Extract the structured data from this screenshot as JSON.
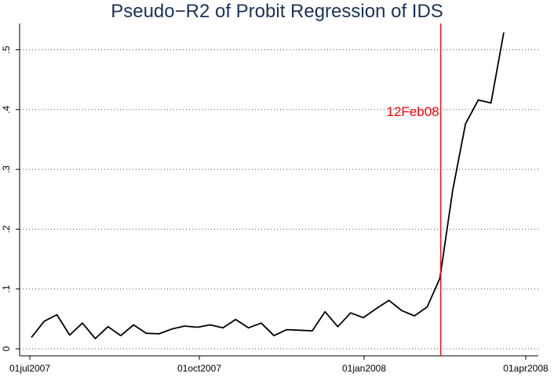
{
  "chart_data": {
    "type": "line",
    "title": "Pseudo−R2 of Probit Regression of IDS",
    "xlabel": "",
    "ylabel": "",
    "x_ticks": [
      "01jul2007",
      "01oct2007",
      "01jan2008",
      "01apr2008"
    ],
    "y_ticks": [
      "0",
      ".1",
      ".2",
      ".3",
      ".4",
      ".5"
    ],
    "ylim": [
      0,
      0.54
    ],
    "grid": true,
    "series": [
      {
        "values": [
          0.019,
          0.046,
          0.057,
          0.023,
          0.043,
          0.017,
          0.037,
          0.022,
          0.04,
          0.026,
          0.025,
          0.033,
          0.038,
          0.036,
          0.04,
          0.035,
          0.049,
          0.035,
          0.043,
          0.022,
          0.032,
          0.031,
          0.03,
          0.062,
          0.037,
          0.06,
          0.052,
          0.067,
          0.081,
          0.064,
          0.055,
          0.07,
          0.118,
          0.265,
          0.376,
          0.416,
          0.411,
          0.529
        ]
      }
    ],
    "event_line": {
      "label": "12Feb08",
      "index": 32,
      "color": "#ff0000"
    },
    "line_color": "#000000",
    "grid_color": "#555555"
  }
}
